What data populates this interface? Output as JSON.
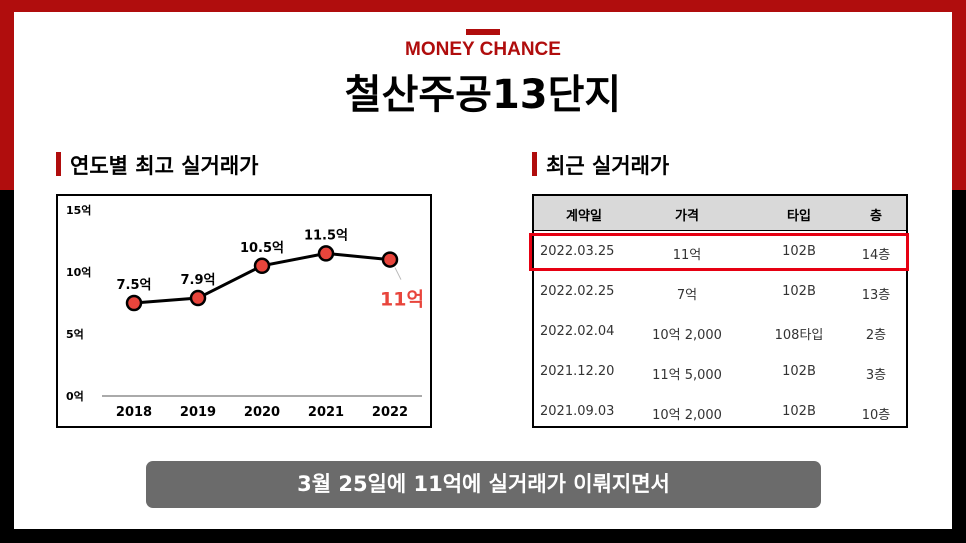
{
  "brand": "MONEY CHANCE",
  "title": "철산주공13단지",
  "left_section_title": "연도별 최고 실거래가",
  "right_section_title": "최근 실거래가",
  "caption": "3월 25일에 11억에 실거래가 이뤄지면서",
  "colors": {
    "accent_red": "#b00d0d",
    "marker_fill": "#e8453c",
    "highlight_red": "#e60012",
    "caption_gray": "#6b6b6b",
    "header_gray": "#d9d9d9"
  },
  "chart_data": {
    "type": "line",
    "categories": [
      "2018",
      "2019",
      "2020",
      "2021",
      "2022"
    ],
    "series": [
      {
        "values": [
          7.5,
          7.9,
          10.5,
          11.5,
          11
        ]
      }
    ],
    "data_labels": [
      "7.5억",
      "7.9억",
      "10.5억",
      "11.5억",
      "11억"
    ],
    "y_ticks": [
      0,
      5,
      10,
      15
    ],
    "y_tick_labels": [
      "0억",
      "5억",
      "10억",
      "15억"
    ],
    "ylim": [
      0,
      15
    ],
    "grid": false,
    "highlight_label": "11억"
  },
  "table": {
    "headers": [
      "계약일",
      "가격",
      "타입",
      "층"
    ],
    "rows": [
      [
        "2022.03.25",
        "11억",
        "102B",
        "14층"
      ],
      [
        "2022.02.25",
        "7억",
        "102B",
        "13층"
      ],
      [
        "2022.02.04",
        "10억 2,000",
        "108타입",
        "2층"
      ],
      [
        "2021.12.20",
        "11억 5,000",
        "102B",
        "3층"
      ],
      [
        "2021.09.03",
        "10억 2,000",
        "102B",
        "10층"
      ]
    ],
    "highlighted_row": 0
  }
}
